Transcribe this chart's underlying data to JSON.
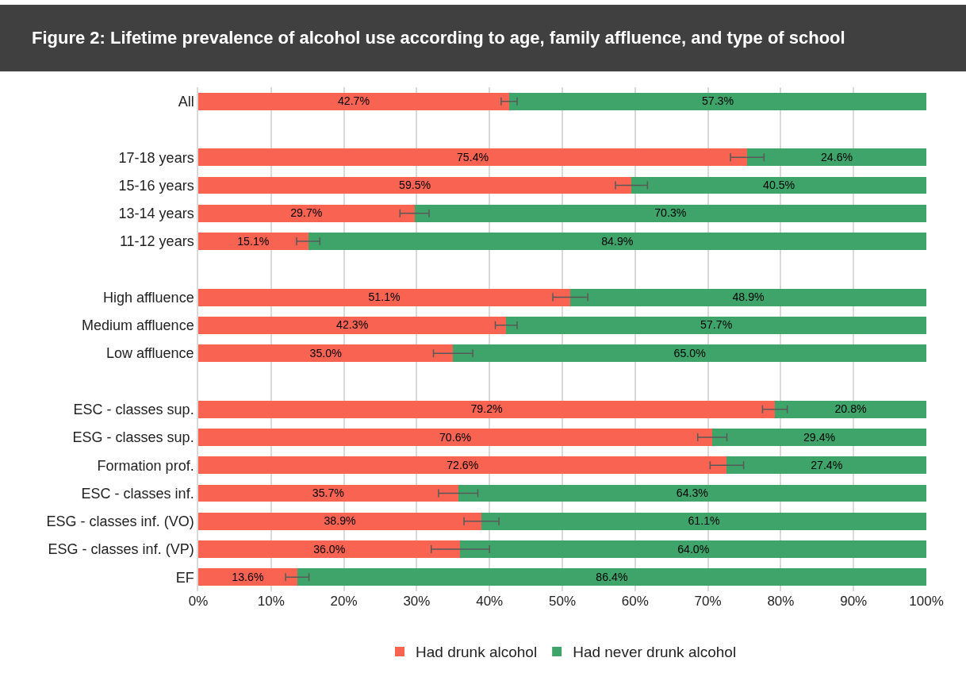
{
  "chart_data": {
    "type": "bar",
    "title": "Figure 2: Lifetime prevalence of alcohol use according to age, family affluence, and type of school",
    "orientation": "horizontal",
    "stacked": true,
    "categories": [
      "All",
      null,
      "17-18 years",
      "15-16 years",
      "13-14 years",
      "11-12 years",
      null,
      "High affluence",
      "Medium affluence",
      "Low affluence",
      null,
      "ESC - classes sup.",
      "ESG - classes sup.",
      "Formation prof.",
      "ESC - classes inf.",
      "ESG - classes inf. (VO)",
      "ESG - classes inf. (VP)",
      "EF"
    ],
    "series": [
      {
        "name": "Had drunk alcohol",
        "color": "#f96352",
        "values": [
          42.7,
          null,
          75.4,
          59.5,
          29.7,
          15.1,
          null,
          51.1,
          42.3,
          35.0,
          null,
          79.2,
          70.6,
          72.6,
          35.7,
          38.9,
          36.0,
          13.6
        ],
        "value_labels": [
          "42.7%",
          null,
          "75.4%",
          "59.5%",
          "29.7%",
          "15.1%",
          null,
          "51.1%",
          "42.3%",
          "35.0%",
          null,
          "79.2%",
          "70.6%",
          "72.6%",
          "35.7%",
          "38.9%",
          "36.0%",
          "13.6%"
        ],
        "errors": [
          1.1,
          null,
          2.3,
          2.2,
          2.0,
          1.6,
          null,
          2.4,
          1.5,
          2.7,
          null,
          1.7,
          2.0,
          2.3,
          2.7,
          2.4,
          4.0,
          1.6
        ]
      },
      {
        "name": "Had never drunk alcohol",
        "color": "#3fa46a",
        "values": [
          57.3,
          null,
          24.6,
          40.5,
          70.3,
          84.9,
          null,
          48.9,
          57.7,
          65.0,
          null,
          20.8,
          29.4,
          27.4,
          64.3,
          61.1,
          64.0,
          86.4
        ],
        "value_labels": [
          "57.3%",
          null,
          "24.6%",
          "40.5%",
          "70.3%",
          "84.9%",
          null,
          "48.9%",
          "57.7%",
          "65.0%",
          null,
          "20.8%",
          "29.4%",
          "27.4%",
          "64.3%",
          "61.1%",
          "64.0%",
          "86.4%"
        ]
      }
    ],
    "xlim": [
      0,
      100
    ],
    "xticks": [
      {
        "value": 0,
        "label": "0%"
      },
      {
        "value": 10,
        "label": "10%"
      },
      {
        "value": 20,
        "label": "20%"
      },
      {
        "value": 30,
        "label": "30%"
      },
      {
        "value": 40,
        "label": "40%"
      },
      {
        "value": 50,
        "label": "50%"
      },
      {
        "value": 60,
        "label": "60%"
      },
      {
        "value": 70,
        "label": "70%"
      },
      {
        "value": 80,
        "label": "80%"
      },
      {
        "value": 90,
        "label": "90%"
      },
      {
        "value": 100,
        "label": "100%"
      }
    ],
    "grid": "x",
    "legend": "bottom"
  }
}
